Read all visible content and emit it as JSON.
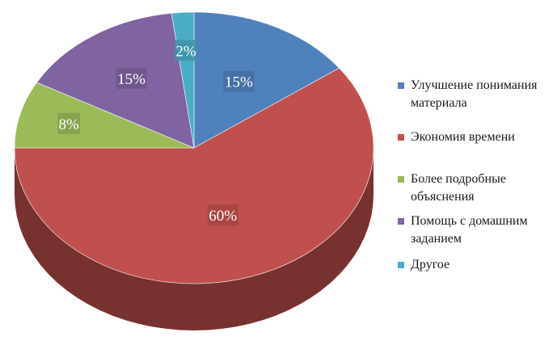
{
  "chart_data": {
    "type": "pie",
    "title": "",
    "legend_position": "right",
    "slices": [
      {
        "label": "Улучшение понимания материала",
        "value": 15,
        "display": "15%",
        "color": "#4f81bd"
      },
      {
        "label": "Экономия времени",
        "value": 60,
        "display": "60%",
        "color": "#c0504d"
      },
      {
        "label": "Более подробные объяснения",
        "value": 8,
        "display": "8%",
        "color": "#9bbb59"
      },
      {
        "label": "Помощь с домашним заданием",
        "value": 15,
        "display": "15%",
        "color": "#8064a2"
      },
      {
        "label": "Другое",
        "value": 2,
        "display": "2%",
        "color": "#4bacc6"
      }
    ]
  }
}
